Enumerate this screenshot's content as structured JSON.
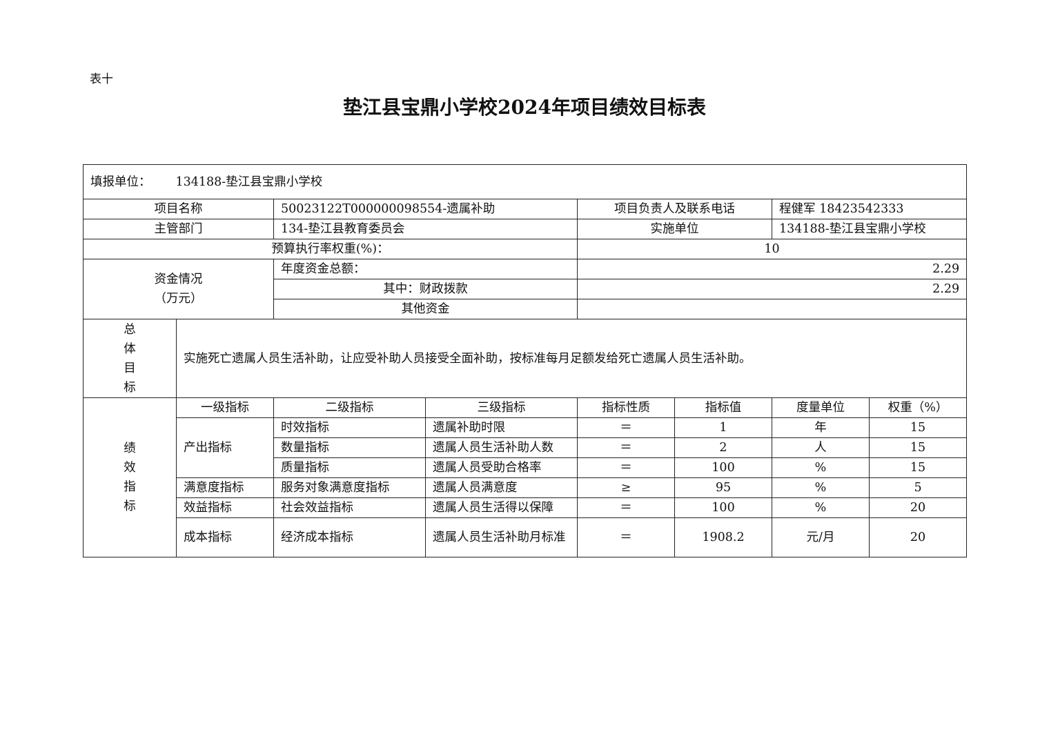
{
  "table_label": "表十",
  "title": "垫江县宝鼎小学校2024年项目绩效目标表",
  "unit": {
    "label": "填报单位：",
    "value": "134188-垫江县宝鼎小学校"
  },
  "info": {
    "project_name_label": "项目名称",
    "project_name": "50023122T000000098554-遗属补助",
    "owner_label": "项目负责人及联系电话",
    "owner": "程健军 18423542333",
    "dept_label": "主管部门",
    "dept": "134-垫江县教育委员会",
    "impl_label": "实施单位",
    "impl": "134188-垫江县宝鼎小学校",
    "budget_weight_label": "预算执行率权重(%)：",
    "budget_weight": "10"
  },
  "funding": {
    "label": "资金情况",
    "unit": "（万元）",
    "total_label": "年度资金总额：",
    "total": "2.29",
    "fiscal_label": "其中：财政拨款",
    "fiscal": "2.29",
    "other_label": "其他资金",
    "other": ""
  },
  "goal": {
    "label": [
      "总",
      "体",
      "目",
      "标"
    ],
    "text": "实施死亡遗属人员生活补助，让应受补助人员接受全面补助，按标准每月足额发给死亡遗属人员生活补助。"
  },
  "metrics": {
    "label": [
      "绩",
      "效",
      "指",
      "标"
    ],
    "headers": [
      "一级指标",
      "二级指标",
      "三级指标",
      "指标性质",
      "指标值",
      "度量单位",
      "权重（%）"
    ],
    "rows": [
      {
        "l1": "产出指标",
        "l2": "时效指标",
        "l3": "遗属补助时限",
        "op": "＝",
        "value": "1",
        "unit": "年",
        "weight": "15"
      },
      {
        "l1": "产出指标",
        "l2": "数量指标",
        "l3": "遗属人员生活补助人数",
        "op": "＝",
        "value": "2",
        "unit": "人",
        "weight": "15"
      },
      {
        "l1": "产出指标",
        "l2": "质量指标",
        "l3": "遗属人员受助合格率",
        "op": "＝",
        "value": "100",
        "unit": "%",
        "weight": "15"
      },
      {
        "l1": "满意度指标",
        "l2": "服务对象满意度指标",
        "l3": "遗属人员满意度",
        "op": "≥",
        "value": "95",
        "unit": "%",
        "weight": "5"
      },
      {
        "l1": "效益指标",
        "l2": "社会效益指标",
        "l3": "遗属人员生活得以保障",
        "op": "＝",
        "value": "100",
        "unit": "%",
        "weight": "20"
      },
      {
        "l1": "成本指标",
        "l2": "经济成本指标",
        "l3": "遗属人员生活补助月标准",
        "op": "＝",
        "value": "1908.2",
        "unit": "元/月",
        "weight": "20"
      }
    ]
  }
}
